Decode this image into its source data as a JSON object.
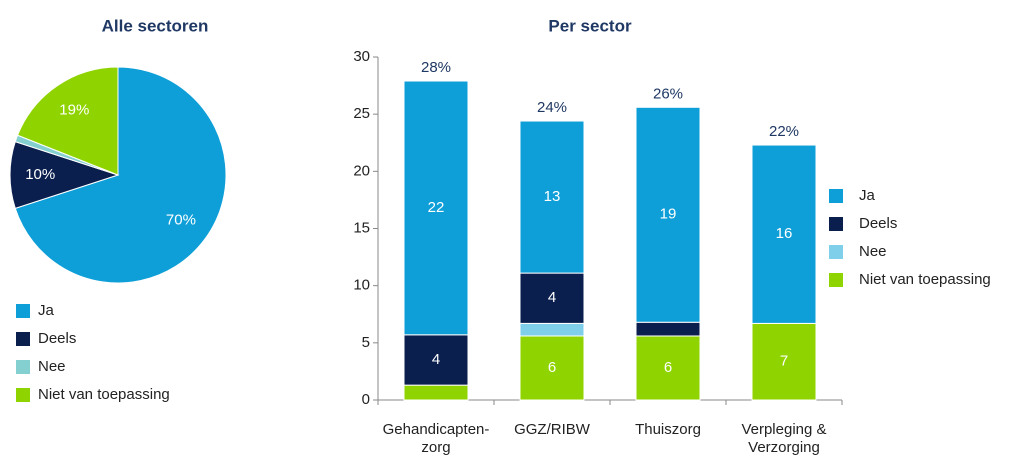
{
  "chart_data": [
    {
      "type": "pie",
      "title": "Alle sectoren",
      "categories": [
        "Ja",
        "Deels",
        "Nee",
        "Niet van toepassing"
      ],
      "values": [
        70,
        10,
        1,
        19
      ],
      "value_labels": [
        "70%",
        "10%",
        null,
        "19%"
      ],
      "colors": [
        "#0e9fd8",
        "#0b1f4f",
        "#84cfd0",
        "#8fd400"
      ]
    },
    {
      "type": "stacked_bar",
      "title": "Per sector",
      "categories": [
        [
          "Gehandicapten-",
          "zorg"
        ],
        [
          "GGZ/RIBW"
        ],
        [
          "Thuiszorg"
        ],
        [
          "Verpleging &",
          "Verzorging"
        ]
      ],
      "series": [
        {
          "name": "Ja",
          "color": "#0e9fd8",
          "values": [
            22.2,
            13.3,
            18.8,
            15.6
          ],
          "value_labels": [
            "22",
            "13",
            "19",
            "16"
          ]
        },
        {
          "name": "Deels",
          "color": "#0b1f4f",
          "values": [
            4.4,
            4.4,
            1.2,
            0
          ],
          "value_labels": [
            "4",
            "4",
            null,
            null
          ]
        },
        {
          "name": "Nee",
          "color": "#7fcfea",
          "values": [
            0,
            1.1,
            0,
            0
          ],
          "value_labels": [
            null,
            null,
            null,
            null
          ]
        },
        {
          "name": "Niet van toepassing",
          "color": "#8fd400",
          "values": [
            1.3,
            5.6,
            5.6,
            6.7
          ],
          "value_labels": [
            null,
            "6",
            "6",
            "7"
          ]
        }
      ],
      "total_labels": [
        "28%",
        "24%",
        "26%",
        "22%"
      ],
      "ylim": [
        0,
        30
      ],
      "yticks": [
        0,
        5,
        10,
        15,
        20,
        25,
        30
      ]
    }
  ]
}
